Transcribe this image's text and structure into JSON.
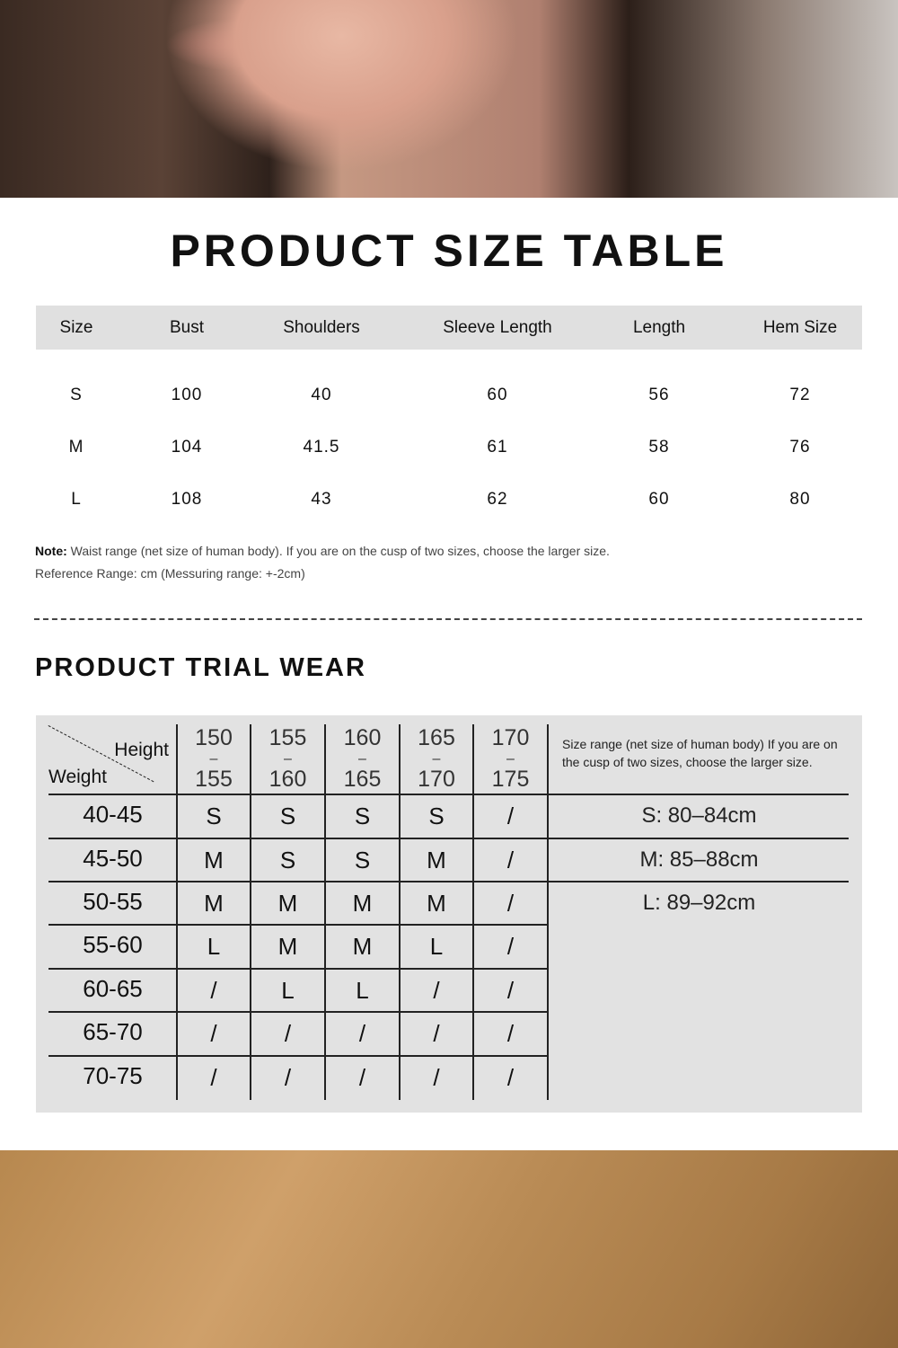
{
  "title": "PRODUCT SIZE TABLE",
  "size_table": {
    "headers": [
      "Size",
      "Bust",
      "Shoulders",
      "Sleeve Length",
      "Length",
      "Hem Size"
    ],
    "rows": [
      [
        "S",
        "100",
        "40",
        "60",
        "56",
        "72"
      ],
      [
        "M",
        "104",
        "41.5",
        "61",
        "58",
        "76"
      ],
      [
        "L",
        "108",
        "43",
        "62",
        "60",
        "80"
      ]
    ]
  },
  "note": {
    "label": "Note:",
    "text": " Waist range (net size of human body). If you are on the cusp of two sizes, choose the larger size.",
    "reference": "Reference Range: cm (Messuring range: +-2cm)"
  },
  "trial": {
    "title": "PRODUCT TRIAL WEAR",
    "corner_height": "Height",
    "corner_weight": "Weight",
    "heights": [
      [
        "150",
        "155"
      ],
      [
        "155",
        "160"
      ],
      [
        "160",
        "165"
      ],
      [
        "165",
        "170"
      ],
      [
        "170",
        "175"
      ]
    ],
    "dash": "–",
    "info": "Size range (net size of human body) If you are on the cusp of two sizes, choose the larger size.",
    "ranges": [
      "S: 80–84cm",
      "M: 85–88cm",
      "L: 89–92cm"
    ],
    "rows": [
      {
        "weight": "40-45",
        "sizes": [
          "S",
          "S",
          "S",
          "S",
          "/"
        ]
      },
      {
        "weight": "45-50",
        "sizes": [
          "M",
          "S",
          "S",
          "M",
          "/"
        ]
      },
      {
        "weight": "50-55",
        "sizes": [
          "M",
          "M",
          "M",
          "M",
          "/"
        ]
      },
      {
        "weight": "55-60",
        "sizes": [
          "L",
          "M",
          "M",
          "L",
          "/"
        ]
      },
      {
        "weight": "60-65",
        "sizes": [
          "/",
          "L",
          "L",
          "/",
          "/"
        ]
      },
      {
        "weight": "65-70",
        "sizes": [
          "/",
          "/",
          "/",
          "/",
          "/"
        ]
      },
      {
        "weight": "70-75",
        "sizes": [
          "/",
          "/",
          "/",
          "/",
          "/"
        ]
      }
    ]
  }
}
